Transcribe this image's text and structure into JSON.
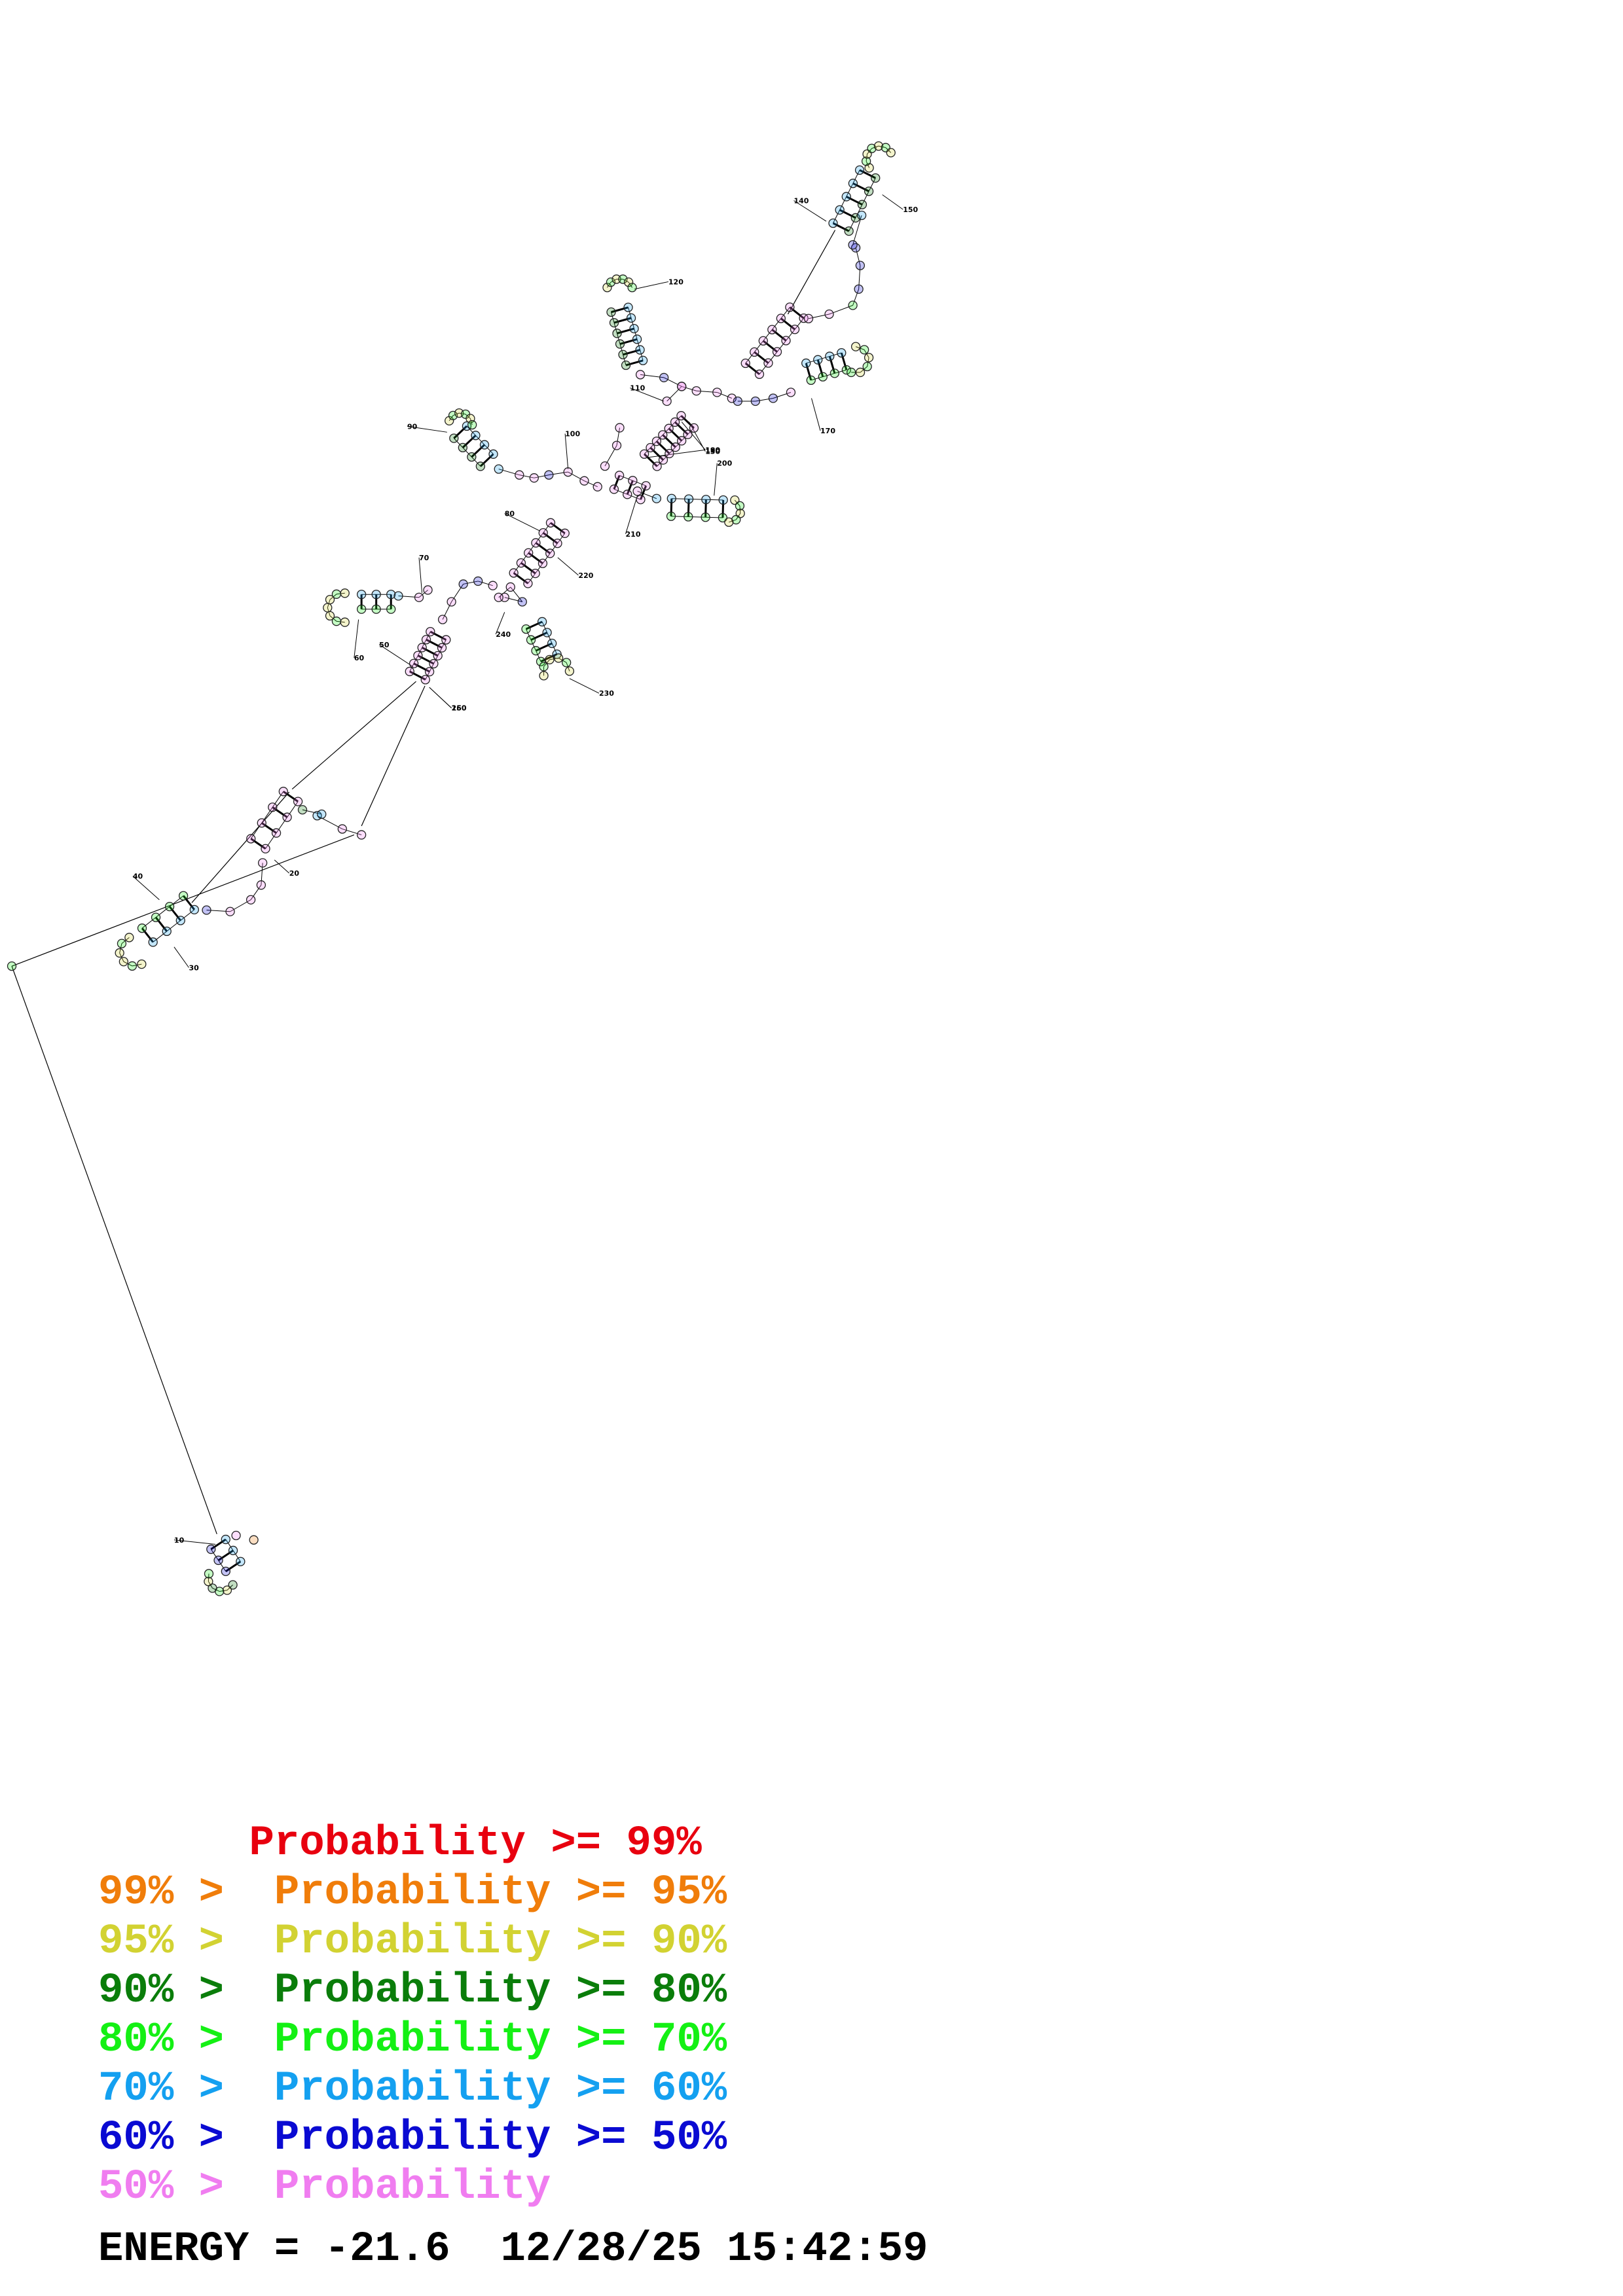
{
  "structure": {
    "position_labels": [
      "10",
      "20",
      "30",
      "40",
      "50",
      "60",
      "70",
      "80",
      "90",
      "100",
      "110",
      "120",
      "130",
      "140",
      "150",
      "160",
      "170",
      "180",
      "190",
      "200",
      "210",
      "220",
      "230",
      "240",
      "250"
    ]
  },
  "legend": [
    {
      "lower": "",
      "label": "Probability",
      "upper": ">= 99%",
      "color": "#e8000f"
    },
    {
      "lower": "99% >",
      "label": "Probability",
      "upper": ">= 95%",
      "color": "#f07d0a"
    },
    {
      "lower": "95% >",
      "label": "Probability",
      "upper": ">= 90%",
      "color": "#d2d232"
    },
    {
      "lower": "90% >",
      "label": "Probability",
      "upper": ">= 80%",
      "color": "#0a7d0a"
    },
    {
      "lower": "80% >",
      "label": "Probability",
      "upper": ">= 70%",
      "color": "#14f014"
    },
    {
      "lower": "70% >",
      "label": "Probability",
      "upper": ">= 60%",
      "color": "#14a0f0"
    },
    {
      "lower": "60% >",
      "label": "Probability",
      "upper": ">= 50%",
      "color": "#0a0ad2"
    },
    {
      "lower": "50% >",
      "label": "Probability",
      "upper": "",
      "color": "#f07df0"
    }
  ],
  "energy": {
    "label": "ENERGY = -21.6",
    "timestamp": "12/28/25 15:42:59"
  }
}
